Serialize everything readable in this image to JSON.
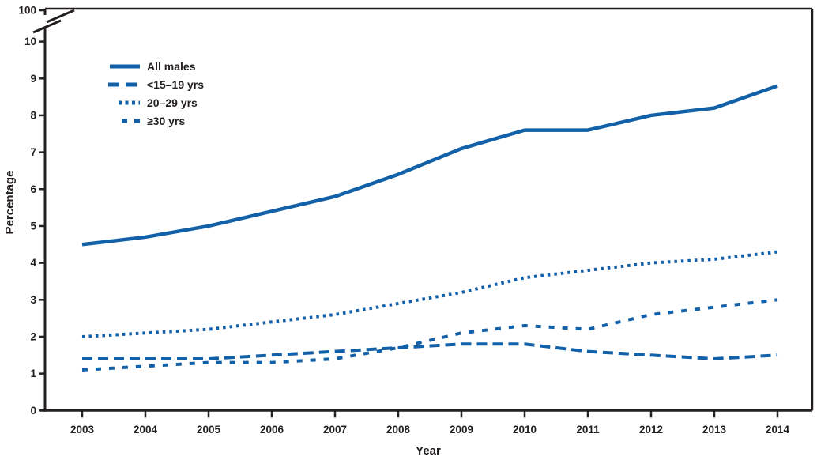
{
  "chart_data": {
    "type": "line",
    "title": "",
    "xlabel": "Year",
    "ylabel": "Percentage",
    "x": [
      2003,
      2004,
      2005,
      2006,
      2007,
      2008,
      2009,
      2010,
      2011,
      2012,
      2013,
      2014
    ],
    "y_axis": {
      "ticks": [
        0,
        1,
        2,
        3,
        4,
        5,
        6,
        7,
        8,
        9,
        10
      ],
      "top_tick_after_break": 100,
      "range_shown": [
        0,
        10
      ],
      "axis_break": true
    },
    "series": [
      {
        "name": "All males",
        "dash": "solid",
        "values": [
          4.5,
          4.7,
          5.0,
          5.4,
          5.8,
          6.4,
          7.1,
          7.6,
          7.6,
          8.0,
          8.2,
          8.8
        ]
      },
      {
        "name": "<15–19 yrs",
        "dash": "long-dash",
        "values": [
          1.4,
          1.4,
          1.4,
          1.5,
          1.6,
          1.7,
          1.8,
          1.8,
          1.6,
          1.5,
          1.4,
          1.5
        ]
      },
      {
        "name": "20–29 yrs",
        "dash": "dot",
        "values": [
          2.0,
          2.1,
          2.2,
          2.4,
          2.6,
          2.9,
          3.2,
          3.6,
          3.8,
          4.0,
          4.1,
          4.3
        ]
      },
      {
        "name": "≥30 yrs",
        "dash": "short-dash",
        "values": [
          1.1,
          1.2,
          1.3,
          1.3,
          1.4,
          1.7,
          2.1,
          2.3,
          2.2,
          2.6,
          2.8,
          3.0
        ]
      }
    ],
    "colors": {
      "line": "#1160A8",
      "text": "#231F20",
      "axis": "#231F20"
    },
    "legend_position": "top-left-inside",
    "grid": false
  }
}
